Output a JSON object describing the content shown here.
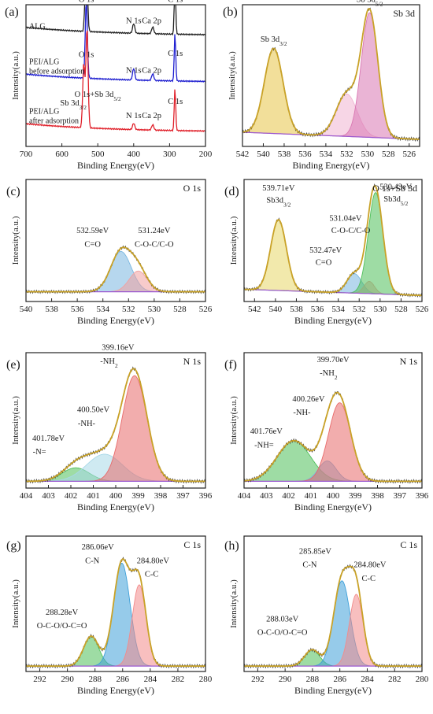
{
  "chart_data": [
    {
      "id": "a",
      "panel_label": "(a)",
      "type": "line",
      "title": "",
      "xlabel": "Binding Energy(eV)",
      "ylabel": "Intensity(a.u.)",
      "xlim": [
        700,
        200
      ],
      "xticks": [
        700,
        600,
        500,
        400,
        300,
        200
      ],
      "series": [
        {
          "name": "ALG",
          "color": "#222222",
          "offset": 0.78,
          "amp": 0.2,
          "peaks": [
            [
              532,
              1.0,
              3
            ],
            [
              400,
              0.1,
              3
            ],
            [
              347,
              0.07,
              3
            ],
            [
              285,
              0.55,
              2
            ]
          ]
        },
        {
          "name": "PEI/ALG before adsorption",
          "color": "#1f1fd0",
          "offset": 0.45,
          "amp": 0.2,
          "peaks": [
            [
              532,
              0.8,
              3
            ],
            [
              400,
              0.12,
              3
            ],
            [
              347,
              0.07,
              3
            ],
            [
              285,
              0.5,
              2
            ]
          ]
        },
        {
          "name": "PEI/ALG after adsorption",
          "color": "#e0202a",
          "offset": 0.1,
          "amp": 0.22,
          "peaks": [
            [
              539,
              0.6,
              3
            ],
            [
              530,
              0.95,
              3
            ],
            [
              400,
              0.06,
              3
            ],
            [
              347,
              0.05,
              3
            ],
            [
              285,
              0.4,
              2
            ]
          ]
        }
      ],
      "annotations": [
        {
          "text": "O 1s",
          "x": 532,
          "y": 1.02
        },
        {
          "text": "N 1s",
          "x": 400,
          "y": 0.87
        },
        {
          "text": "Ca 2p",
          "x": 350,
          "y": 0.87
        },
        {
          "text": "C 1s",
          "x": 284,
          "y": 1.02
        },
        {
          "text": "O 1s",
          "x": 532,
          "y": 0.63
        },
        {
          "text": "N 1s",
          "x": 400,
          "y": 0.52
        },
        {
          "text": "Ca 2p",
          "x": 350,
          "y": 0.52
        },
        {
          "text": "C 1s",
          "x": 284,
          "y": 0.64
        },
        {
          "text": "O 1s+Sb 3d5/2",
          "x": 500,
          "y": 0.35
        },
        {
          "text": "Sb 3d3/2",
          "x": 568,
          "y": 0.29
        },
        {
          "text": "N 1s",
          "x": 400,
          "y": 0.2
        },
        {
          "text": "Ca 2p",
          "x": 350,
          "y": 0.2
        },
        {
          "text": "C 1s",
          "x": 284,
          "y": 0.3
        }
      ]
    },
    {
      "id": "b",
      "panel_label": "(b)",
      "type": "area",
      "title": "Sb 3d",
      "xlabel": "Binding Energy(eV)",
      "ylabel": "Intensity(a.u.)",
      "xlim": [
        542,
        525
      ],
      "xticks": [
        542,
        540,
        538,
        536,
        534,
        532,
        530,
        528,
        526
      ],
      "background": [
        0.1,
        0.05
      ],
      "components": [
        {
          "center": 539.0,
          "height": 0.6,
          "width": 0.9,
          "color": "#e8c547"
        },
        {
          "center": 532.0,
          "height": 0.3,
          "width": 1.0,
          "color": "#f0b4d2"
        },
        {
          "center": 529.8,
          "height": 0.88,
          "width": 0.8,
          "color": "#d977b2"
        }
      ],
      "annotations": [
        {
          "text": "Sb 3d3/2",
          "x": 539.0,
          "y": 0.74
        },
        {
          "text": "Sb 3d5/2",
          "x": 529.8,
          "y": 1.02
        }
      ]
    },
    {
      "id": "c",
      "panel_label": "(c)",
      "type": "area",
      "title": "O 1s",
      "xlabel": "Binding Energy(eV)",
      "ylabel": "Intensity(a.u.)",
      "xlim": [
        540,
        526
      ],
      "xticks": [
        540,
        538,
        536,
        534,
        532,
        530,
        528,
        526
      ],
      "background": [
        0.08,
        0.08
      ],
      "components": [
        {
          "center": 532.59,
          "height": 0.33,
          "width": 0.8,
          "color": "#7ab7e0"
        },
        {
          "center": 531.24,
          "height": 0.17,
          "width": 0.7,
          "color": "#f0a1a1"
        }
      ],
      "annotations": [
        {
          "text": "532.59eV",
          "x": 534.8,
          "y": 0.56
        },
        {
          "text": "C=O",
          "x": 534.8,
          "y": 0.45
        },
        {
          "text": "531.24eV",
          "x": 530.0,
          "y": 0.56
        },
        {
          "text": "C-O-C/C-O",
          "x": 530.0,
          "y": 0.45
        }
      ]
    },
    {
      "id": "d",
      "panel_label": "(d)",
      "type": "area",
      "title": "O 1s+Sb 3d",
      "xlabel": "Binding Energy(eV)",
      "ylabel": "Intensity(a.u.)",
      "xlim": [
        543,
        526
      ],
      "xticks": [
        542,
        540,
        538,
        536,
        534,
        532,
        530,
        528,
        526
      ],
      "background": [
        0.1,
        0.05
      ],
      "components": [
        {
          "center": 539.71,
          "height": 0.58,
          "width": 0.75,
          "color": "#e8d767"
        },
        {
          "center": 532.47,
          "height": 0.16,
          "width": 0.7,
          "color": "#7ab7e0"
        },
        {
          "center": 531.04,
          "height": 0.1,
          "width": 0.5,
          "color": "#f0a1a1"
        },
        {
          "center": 530.43,
          "height": 0.83,
          "width": 0.7,
          "color": "#4fbf5a"
        }
      ],
      "annotations": [
        {
          "text": "539.71eV",
          "x": 539.7,
          "y": 0.91
        },
        {
          "text": "Sb3d3/2",
          "x": 539.7,
          "y": 0.81
        },
        {
          "text": "531.04eV",
          "x": 533.3,
          "y": 0.66
        },
        {
          "text": "C-O-C/C-O",
          "x": 532.8,
          "y": 0.56
        },
        {
          "text": "532.47eV",
          "x": 535.2,
          "y": 0.4
        },
        {
          "text": "C=O",
          "x": 535.4,
          "y": 0.3
        },
        {
          "text": "530.43eV",
          "x": 528.5,
          "y": 0.92
        },
        {
          "text": "Sb3d5/2",
          "x": 528.5,
          "y": 0.82
        }
      ]
    },
    {
      "id": "e",
      "panel_label": "(e)",
      "type": "area",
      "title": "N 1s",
      "xlabel": "Binding Energy(eV)",
      "ylabel": "Intensity(a.u.)",
      "xlim": [
        404,
        396
      ],
      "xticks": [
        404,
        403,
        402,
        401,
        400,
        399,
        398,
        397,
        396
      ],
      "background": [
        0.05,
        0.05
      ],
      "components": [
        {
          "center": 401.78,
          "height": 0.1,
          "width": 0.6,
          "color": "#4fbf5a"
        },
        {
          "center": 400.5,
          "height": 0.2,
          "width": 0.8,
          "color": "#a8d8e8"
        },
        {
          "center": 399.16,
          "height": 0.78,
          "width": 0.55,
          "color": "#e86a6a"
        }
      ],
      "annotations": [
        {
          "text": "399.16eV",
          "x": 399.9,
          "y": 1.02
        },
        {
          "text": "-NH2",
          "x": 400.3,
          "y": 0.92
        },
        {
          "text": "400.50eV",
          "x": 401.0,
          "y": 0.56
        },
        {
          "text": "-NH-",
          "x": 401.3,
          "y": 0.46
        },
        {
          "text": "401.78eV",
          "x": 403.0,
          "y": 0.35
        },
        {
          "text": "-N=",
          "x": 403.4,
          "y": 0.25
        }
      ]
    },
    {
      "id": "f",
      "panel_label": "(f)",
      "type": "area",
      "title": "N 1s",
      "xlabel": "Binding Energy(eV)",
      "ylabel": "Intensity(a.u.)",
      "xlim": [
        404,
        396
      ],
      "xticks": [
        404,
        403,
        402,
        401,
        400,
        399,
        398,
        397,
        396
      ],
      "background": [
        0.05,
        0.05
      ],
      "components": [
        {
          "center": 401.76,
          "height": 0.3,
          "width": 0.75,
          "color": "#4fbf5a"
        },
        {
          "center": 400.26,
          "height": 0.15,
          "width": 0.4,
          "color": "#7ab7e0"
        },
        {
          "center": 399.7,
          "height": 0.58,
          "width": 0.5,
          "color": "#e86a6a"
        }
      ],
      "annotations": [
        {
          "text": "399.70eV",
          "x": 400.0,
          "y": 0.93
        },
        {
          "text": "-NH2",
          "x": 400.2,
          "y": 0.83
        },
        {
          "text": "400.26eV",
          "x": 401.1,
          "y": 0.64
        },
        {
          "text": "-NH-",
          "x": 401.4,
          "y": 0.54
        },
        {
          "text": "401.76eV",
          "x": 403.0,
          "y": 0.4
        },
        {
          "text": "-NH=",
          "x": 403.1,
          "y": 0.3
        }
      ]
    },
    {
      "id": "g",
      "panel_label": "(g)",
      "type": "area",
      "title": "C 1s",
      "xlabel": "Binding Energy(eV)",
      "ylabel": "Intensity(a.u.)",
      "xlim": [
        293,
        280
      ],
      "xticks": [
        292,
        290,
        288,
        286,
        284,
        282,
        280
      ],
      "background": [
        0.04,
        0.04
      ],
      "components": [
        {
          "center": 288.28,
          "height": 0.22,
          "width": 0.55,
          "color": "#4fbf5a"
        },
        {
          "center": 286.06,
          "height": 0.76,
          "width": 0.6,
          "color": "#3fa0d8"
        },
        {
          "center": 284.8,
          "height": 0.6,
          "width": 0.5,
          "color": "#f28b8b"
        }
      ],
      "annotations": [
        {
          "text": "286.06eV",
          "x": 287.8,
          "y": 0.9
        },
        {
          "text": "C-N",
          "x": 288.2,
          "y": 0.8
        },
        {
          "text": "284.80eV",
          "x": 283.8,
          "y": 0.8
        },
        {
          "text": "C-C",
          "x": 283.9,
          "y": 0.7
        },
        {
          "text": "288.28eV",
          "x": 290.4,
          "y": 0.42
        },
        {
          "text": "O-C-O/O-C=O",
          "x": 290.4,
          "y": 0.32
        }
      ]
    },
    {
      "id": "h",
      "panel_label": "(h)",
      "type": "area",
      "title": "C 1s",
      "xlabel": "Binding Energy(eV)",
      "ylabel": "Intensity(a.u.)",
      "xlim": [
        293,
        280
      ],
      "xticks": [
        292,
        290,
        288,
        286,
        284,
        282,
        280
      ],
      "background": [
        0.04,
        0.04
      ],
      "components": [
        {
          "center": 288.03,
          "height": 0.12,
          "width": 0.55,
          "color": "#4fbf5a"
        },
        {
          "center": 285.85,
          "height": 0.63,
          "width": 0.6,
          "color": "#3fa0d8"
        },
        {
          "center": 284.8,
          "height": 0.53,
          "width": 0.5,
          "color": "#f28b8b"
        }
      ],
      "annotations": [
        {
          "text": "285.85eV",
          "x": 287.8,
          "y": 0.87
        },
        {
          "text": "C-N",
          "x": 288.2,
          "y": 0.77
        },
        {
          "text": "284.80eV",
          "x": 283.8,
          "y": 0.77
        },
        {
          "text": "C-C",
          "x": 283.9,
          "y": 0.67
        },
        {
          "text": "288.03eV",
          "x": 290.2,
          "y": 0.37
        },
        {
          "text": "O-C-O/O-C=O",
          "x": 290.2,
          "y": 0.27
        }
      ]
    }
  ]
}
